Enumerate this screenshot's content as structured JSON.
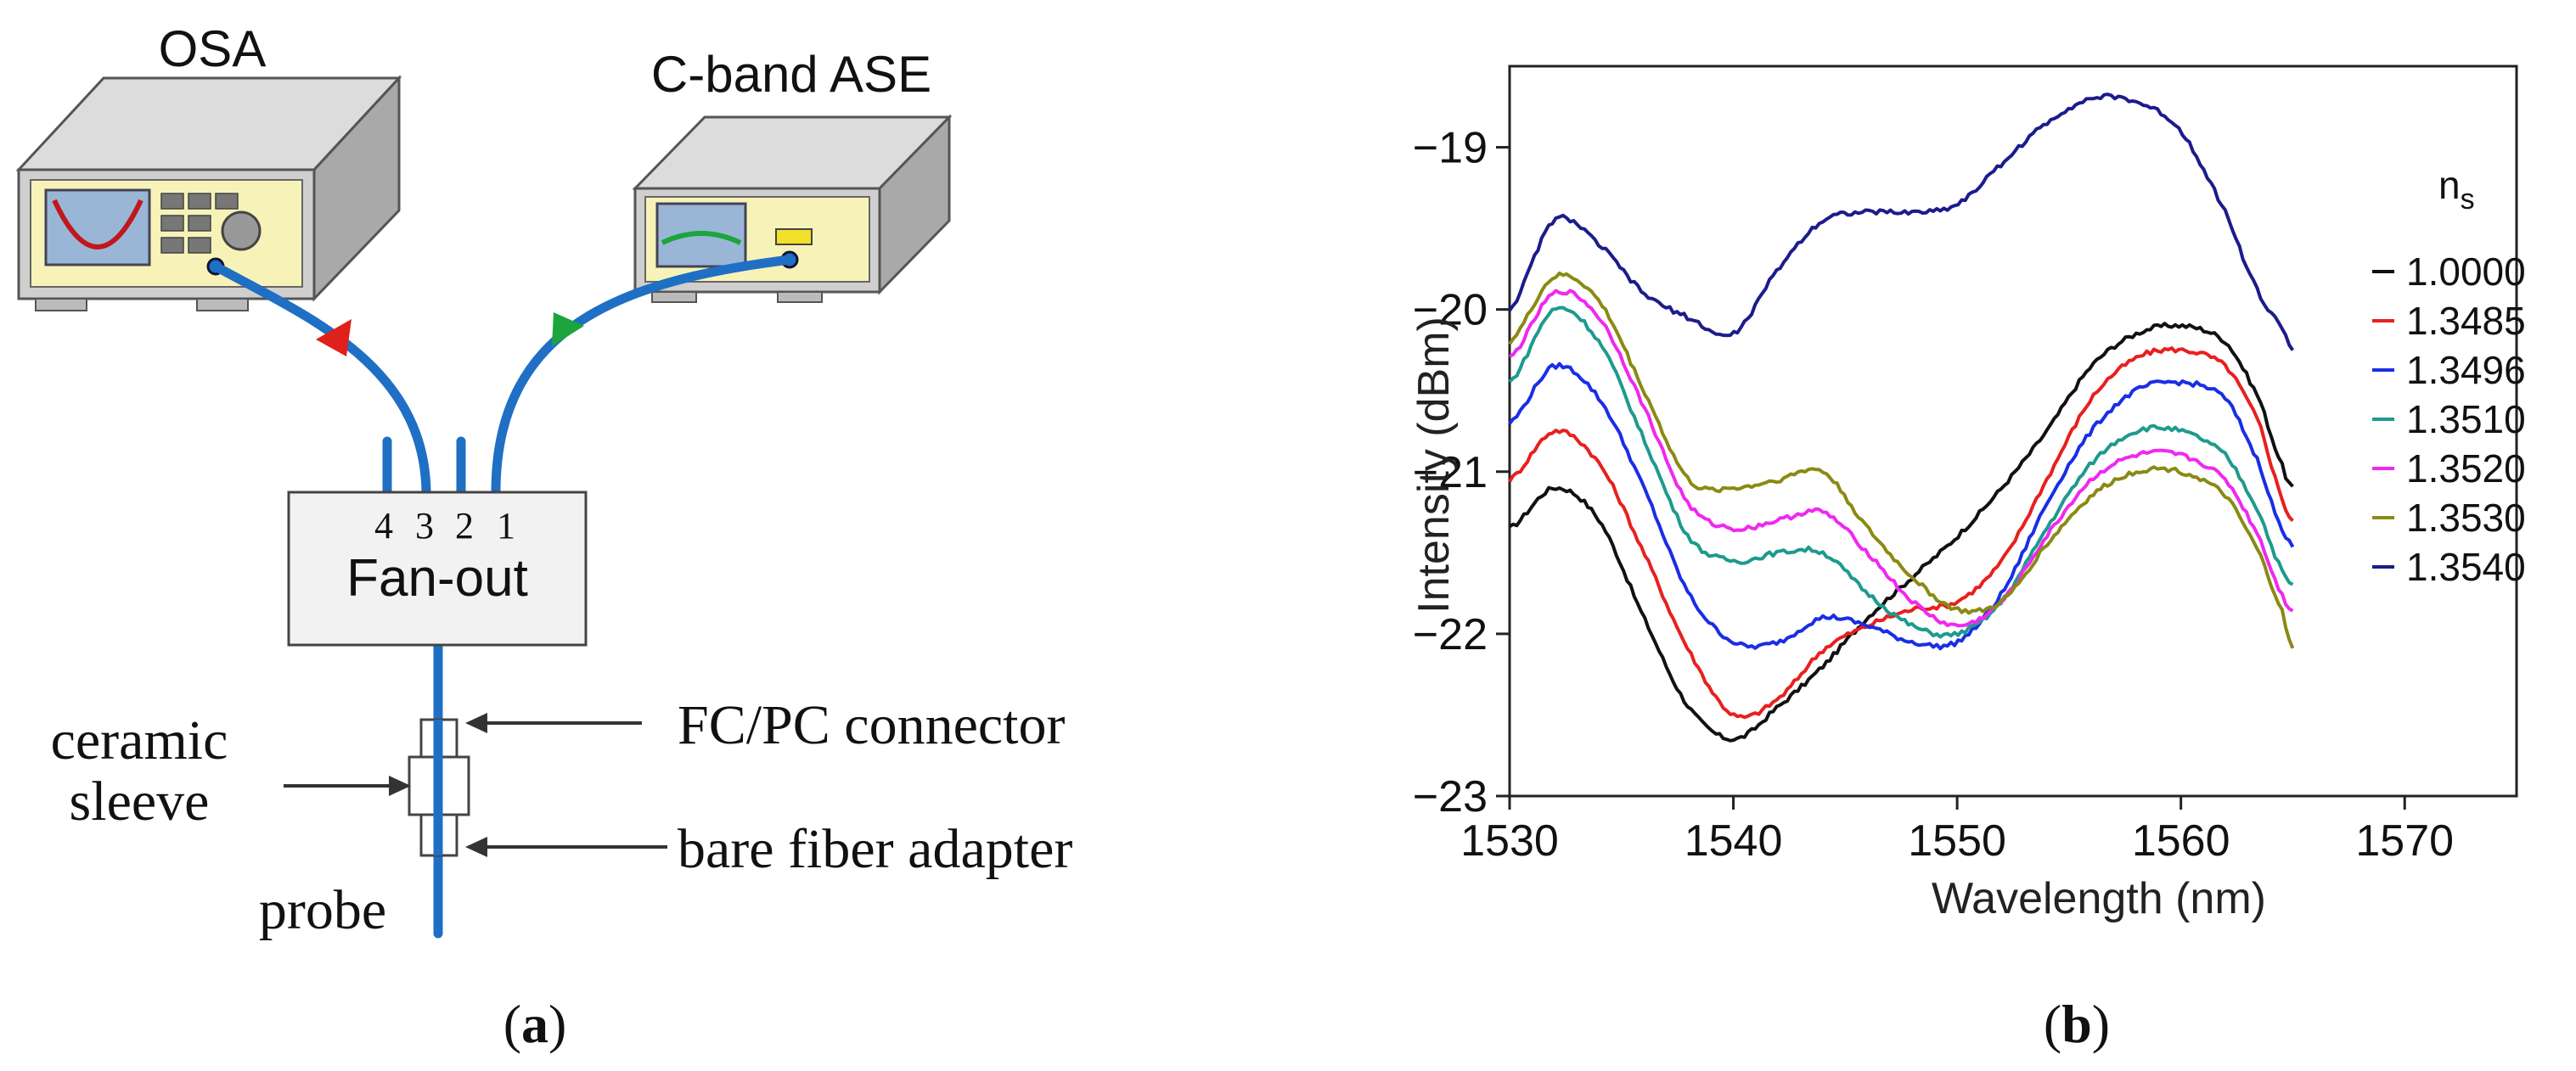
{
  "panel_a": {
    "osa_label": "OSA",
    "ase_label": "C-band ASE",
    "fanout_label": "Fan-out",
    "ports": [
      "4",
      "3",
      "2",
      "1"
    ],
    "callouts": {
      "fc_pc": "FC/PC connector",
      "bare_fiber": "bare fiber adapter",
      "ceramic_line1": "ceramic",
      "ceramic_line2": "sleeve",
      "probe": "probe"
    },
    "label_open": "(",
    "label_letter": "a",
    "label_close": ")",
    "colors": {
      "fiber": "#1f6fc4",
      "arrow_osa": "#e0201a",
      "arrow_ase": "#1ca53c",
      "screen": "#9ab6d6",
      "panel": "#f7f3b8"
    }
  },
  "panel_b": {
    "label_open": "(",
    "label_letter": "b",
    "label_close": ")"
  },
  "chart_data": {
    "type": "line",
    "xlabel": "Wavelength (nm)",
    "ylabel": "Intensity (dBm)",
    "xlim": [
      1530,
      1575
    ],
    "ylim": [
      -23,
      -18.5
    ],
    "xticks": [
      1530,
      1540,
      1550,
      1560,
      1570
    ],
    "yticks": [
      -23,
      -22,
      -21,
      -20,
      -19
    ],
    "legend_title": "n",
    "legend_title_sub": "s",
    "legend_position": "right",
    "series": [
      {
        "name": "1.0000",
        "color": "#111111",
        "x": [
          1530,
          1532,
          1534,
          1536,
          1538,
          1540,
          1542,
          1544,
          1546,
          1548,
          1550,
          1552,
          1554,
          1556,
          1558,
          1560,
          1562,
          1563.5,
          1564.5,
          1565
        ],
        "y": [
          -21.35,
          -21.1,
          -21.3,
          -21.9,
          -22.45,
          -22.65,
          -22.45,
          -22.2,
          -21.9,
          -21.65,
          -21.4,
          -21.1,
          -20.75,
          -20.35,
          -20.15,
          -20.1,
          -20.2,
          -20.55,
          -20.95,
          -21.1
        ]
      },
      {
        "name": "1.3485",
        "color": "#e8201e",
        "x": [
          1530,
          1532,
          1534,
          1536,
          1538,
          1540,
          1542,
          1544,
          1546,
          1548,
          1550,
          1552,
          1554,
          1556,
          1558,
          1560,
          1562,
          1563.5,
          1564.5,
          1565
        ],
        "y": [
          -21.05,
          -20.75,
          -20.95,
          -21.5,
          -22.1,
          -22.5,
          -22.4,
          -22.1,
          -21.95,
          -21.85,
          -21.8,
          -21.55,
          -21.05,
          -20.55,
          -20.3,
          -20.25,
          -20.35,
          -20.7,
          -21.15,
          -21.3
        ]
      },
      {
        "name": "1.3496",
        "color": "#1a2ee6",
        "x": [
          1530,
          1532,
          1534,
          1536,
          1538,
          1540,
          1542,
          1544,
          1546,
          1548,
          1550,
          1552,
          1554,
          1556,
          1558,
          1560,
          1562,
          1563.5,
          1564.5,
          1565
        ],
        "y": [
          -20.7,
          -20.35,
          -20.55,
          -21.1,
          -21.75,
          -22.05,
          -22.05,
          -21.9,
          -21.95,
          -22.05,
          -22.05,
          -21.75,
          -21.2,
          -20.75,
          -20.5,
          -20.45,
          -20.55,
          -20.95,
          -21.35,
          -21.45
        ]
      },
      {
        "name": "1.3510",
        "color": "#1e9a8e",
        "x": [
          1530,
          1532,
          1534,
          1536,
          1538,
          1540,
          1542,
          1544,
          1546,
          1548,
          1550,
          1552,
          1554,
          1556,
          1558,
          1560,
          1562,
          1563.5,
          1564.5,
          1565
        ],
        "y": [
          -20.45,
          -20.0,
          -20.2,
          -20.8,
          -21.4,
          -21.55,
          -21.5,
          -21.5,
          -21.75,
          -21.95,
          -22.0,
          -21.8,
          -21.35,
          -20.95,
          -20.75,
          -20.75,
          -20.9,
          -21.25,
          -21.6,
          -21.7
        ]
      },
      {
        "name": "1.3520",
        "color": "#f028f0",
        "x": [
          1530,
          1532,
          1534,
          1536,
          1538,
          1540,
          1542,
          1544,
          1546,
          1548,
          1550,
          1552,
          1554,
          1556,
          1558,
          1560,
          1562,
          1563.5,
          1564.5,
          1565
        ],
        "y": [
          -20.3,
          -19.9,
          -20.05,
          -20.6,
          -21.2,
          -21.35,
          -21.3,
          -21.25,
          -21.5,
          -21.8,
          -21.95,
          -21.8,
          -21.4,
          -21.05,
          -20.9,
          -20.9,
          -21.05,
          -21.4,
          -21.75,
          -21.85
        ]
      },
      {
        "name": "1.3530",
        "color": "#8a8a14",
        "x": [
          1530,
          1532,
          1534,
          1536,
          1538,
          1540,
          1542,
          1544,
          1546,
          1548,
          1550,
          1552,
          1554,
          1556,
          1558,
          1560,
          1562,
          1563.5,
          1564.5,
          1565
        ],
        "y": [
          -20.2,
          -19.8,
          -19.95,
          -20.5,
          -21.05,
          -21.1,
          -21.05,
          -21.0,
          -21.35,
          -21.65,
          -21.85,
          -21.8,
          -21.45,
          -21.15,
          -21.0,
          -21.0,
          -21.15,
          -21.5,
          -21.85,
          -22.1
        ]
      },
      {
        "name": "1.3540",
        "color": "#1c1c8c",
        "x": [
          1530,
          1532,
          1534,
          1536,
          1538,
          1540,
          1542,
          1544,
          1546,
          1548,
          1550,
          1552,
          1554,
          1556,
          1558,
          1560,
          1562,
          1563.5,
          1564.5,
          1565
        ],
        "y": [
          -20.0,
          -19.45,
          -19.6,
          -19.9,
          -20.05,
          -20.15,
          -19.75,
          -19.45,
          -19.4,
          -19.4,
          -19.35,
          -19.1,
          -18.85,
          -18.7,
          -18.72,
          -18.9,
          -19.4,
          -19.9,
          -20.1,
          -20.25
        ]
      }
    ]
  }
}
